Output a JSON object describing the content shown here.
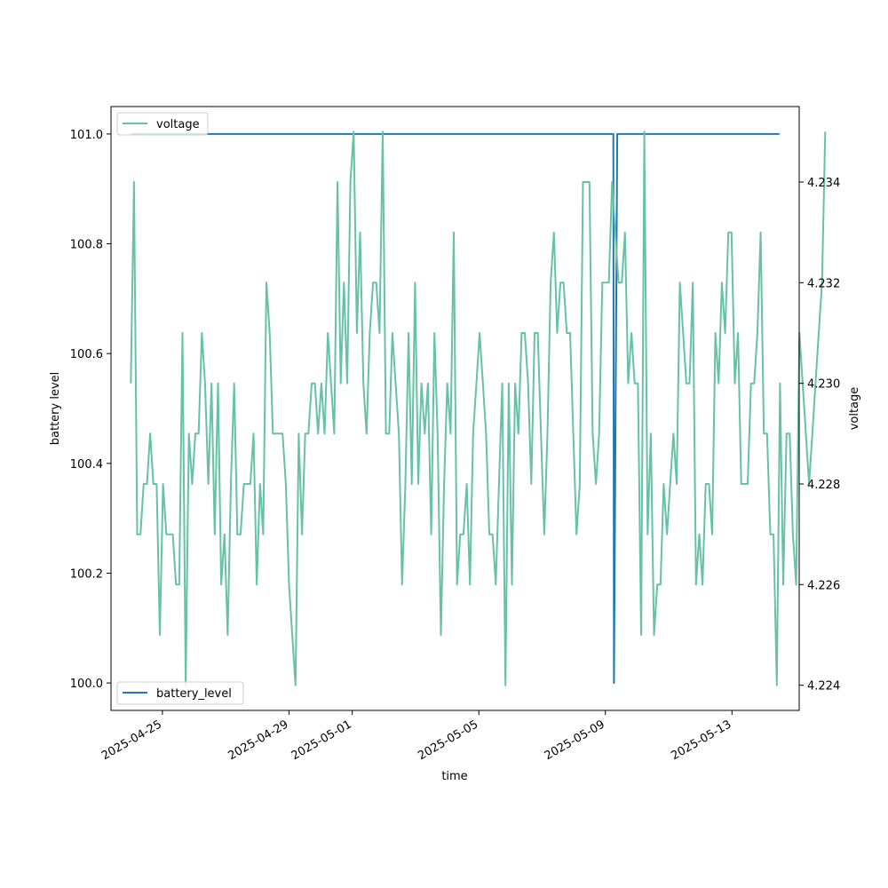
{
  "chart_data": {
    "type": "line",
    "xlabel": "time",
    "ylabel_left": "battery level",
    "ylabel_right": "voltage",
    "x_ticks": [
      "2025-04-25",
      "2025-04-29",
      "2025-05-01",
      "2025-05-05",
      "2025-05-09",
      "2025-05-13"
    ],
    "y_left_ticks": [
      "100.0",
      "100.2",
      "100.4",
      "100.6",
      "100.8",
      "101.0"
    ],
    "y_right_ticks": [
      "4.224",
      "4.226",
      "4.228",
      "4.230",
      "4.232",
      "4.234"
    ],
    "y_left_range": [
      99.95,
      101.05
    ],
    "y_right_range": [
      4.2235,
      4.2355
    ],
    "x_range": [
      "2025-04-23T09:00",
      "2025-05-15T03:00"
    ],
    "grid": false,
    "legends": [
      {
        "label": "voltage",
        "placement": "upper-left"
      },
      {
        "label": "battery_level",
        "placement": "lower-left"
      }
    ],
    "series": [
      {
        "name": "battery_level",
        "axis": "left",
        "color": "#1f77b4",
        "points": [
          [
            "2025-04-24T00:00",
            101.0
          ],
          [
            "2025-05-09T06:00",
            101.0
          ],
          [
            "2025-05-09T06:30",
            100.0
          ],
          [
            "2025-05-09T09:00",
            101.0
          ],
          [
            "2025-05-14T12:00",
            101.0
          ]
        ]
      },
      {
        "name": "voltage",
        "axis": "right",
        "color": "#66c2a5",
        "start": "2025-04-24T00:00",
        "step_hours": 2.45,
        "values": [
          4.23,
          4.234,
          4.227,
          4.227,
          4.228,
          4.228,
          4.229,
          4.228,
          4.228,
          4.225,
          4.228,
          4.227,
          4.227,
          4.227,
          4.226,
          4.226,
          4.231,
          4.224,
          4.229,
          4.228,
          4.229,
          4.229,
          4.231,
          4.23,
          4.228,
          4.23,
          4.227,
          4.23,
          4.226,
          4.227,
          4.225,
          4.228,
          4.23,
          4.227,
          4.227,
          4.228,
          4.228,
          4.228,
          4.229,
          4.226,
          4.228,
          4.227,
          4.232,
          4.231,
          4.229,
          4.229,
          4.229,
          4.229,
          4.228,
          4.226,
          4.225,
          4.224,
          4.229,
          4.227,
          4.229,
          4.229,
          4.23,
          4.23,
          4.229,
          4.23,
          4.229,
          4.231,
          4.23,
          4.229,
          4.234,
          4.23,
          4.232,
          4.23,
          4.234,
          4.235,
          4.231,
          4.233,
          4.23,
          4.229,
          4.231,
          4.232,
          4.232,
          4.231,
          4.235,
          4.229,
          4.229,
          4.231,
          4.23,
          4.229,
          4.226,
          4.228,
          4.231,
          4.228,
          4.232,
          4.228,
          4.23,
          4.229,
          4.23,
          4.227,
          4.231,
          4.229,
          4.225,
          4.228,
          4.23,
          4.229,
          4.233,
          4.226,
          4.227,
          4.227,
          4.228,
          4.226,
          4.229,
          4.23,
          4.231,
          4.23,
          4.229,
          4.227,
          4.227,
          4.226,
          4.228,
          4.23,
          4.224,
          4.23,
          4.226,
          4.23,
          4.229,
          4.231,
          4.231,
          4.23,
          4.228,
          4.231,
          4.231,
          4.229,
          4.227,
          4.229,
          4.232,
          4.233,
          4.231,
          4.232,
          4.232,
          4.231,
          4.231,
          4.229,
          4.227,
          4.228,
          4.234,
          4.234,
          4.234,
          4.229,
          4.228,
          4.229,
          4.232,
          4.232,
          4.232,
          4.234,
          4.233,
          4.232,
          4.232,
          4.233,
          4.23,
          4.231,
          4.23,
          4.23,
          4.225,
          4.235,
          4.227,
          4.229,
          4.225,
          4.226,
          4.226,
          4.228,
          4.227,
          4.228,
          4.229,
          4.228,
          4.232,
          4.231,
          4.23,
          4.23,
          4.232,
          4.226,
          4.227,
          4.226,
          4.228,
          4.228,
          4.227,
          4.231,
          4.23,
          4.232,
          4.231,
          4.233,
          4.233,
          4.23,
          4.231,
          4.228,
          4.228,
          4.228,
          4.23,
          4.23,
          4.231,
          4.233,
          4.229,
          4.229,
          4.227,
          4.227,
          4.224,
          4.23,
          4.226,
          4.229,
          4.229,
          4.227,
          4.226,
          4.231,
          4.23,
          4.229,
          4.228,
          4.229,
          4.23,
          4.231,
          4.232,
          4.235
        ]
      }
    ]
  }
}
